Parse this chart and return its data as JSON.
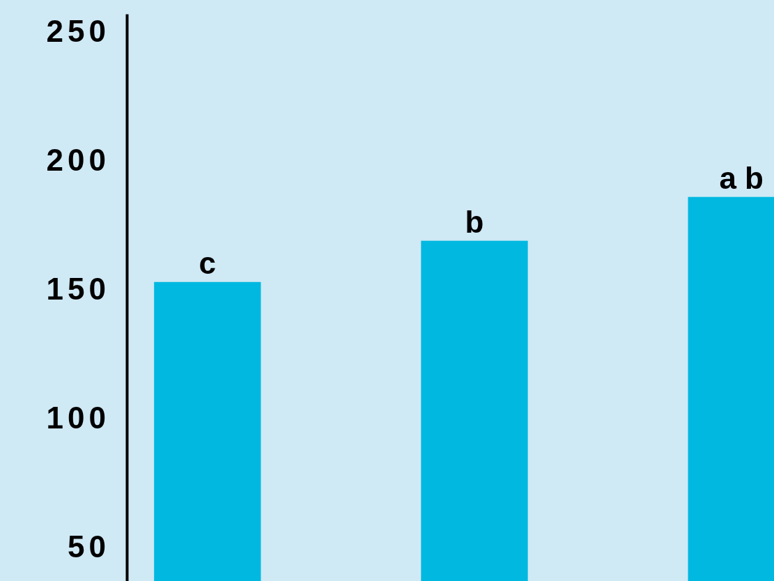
{
  "chart_data": {
    "type": "bar",
    "categories": [
      null,
      null,
      null
    ],
    "values": [
      153,
      169,
      186
    ],
    "color": "#00b8e0",
    "ylim": [
      37,
      257
    ],
    "yticks": [
      50,
      100,
      150,
      200,
      250
    ],
    "grid": false,
    "tick_labels": "y",
    "annotations": [
      {
        "text": "c",
        "y": 153
      },
      {
        "text": "b",
        "y": 169
      },
      {
        "text": "a b",
        "y": 186
      }
    ]
  }
}
